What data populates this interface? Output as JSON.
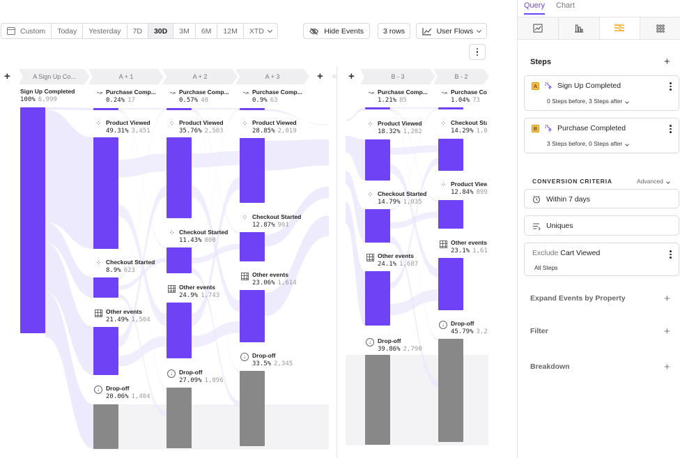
{
  "toolbar": {
    "date_range": [
      "Custom",
      "Today",
      "Yesterday",
      "7D",
      "30D",
      "3M",
      "6M",
      "12M",
      "XTD"
    ],
    "active_range": "30D",
    "hide_events_label": "Hide Events",
    "rows_label": "3 rows",
    "chart_type_label": "User Flows"
  },
  "flow": {
    "headers": {
      "anchor_a": "A  Sign Up Co...",
      "a1": "A + 1",
      "a2": "A + 2",
      "a3": "A + 3",
      "b3": "B - 3",
      "b2": "B - 2"
    },
    "anchor": {
      "title": "Sign Up Completed",
      "pct": "100%",
      "count": "6,999"
    },
    "columns": [
      {
        "key": "a1",
        "nodes": [
          {
            "title": "Purchase Comp...",
            "pct": "0.24%",
            "count": "17"
          },
          {
            "title": "Product Viewed",
            "pct": "49.31%",
            "count": "3,451"
          },
          {
            "title": "Checkout Started",
            "pct": "8.9%",
            "count": "623"
          },
          {
            "title": "Other events",
            "pct": "21.49%",
            "count": "1,504"
          },
          {
            "title": "Drop-off",
            "pct": "20.06%",
            "count": "1,404"
          }
        ]
      },
      {
        "key": "a2",
        "nodes": [
          {
            "title": "Purchase Comp...",
            "pct": "0.57%",
            "count": "40"
          },
          {
            "title": "Product Viewed",
            "pct": "35.76%",
            "count": "2,503"
          },
          {
            "title": "Checkout Started",
            "pct": "11.43%",
            "count": "800"
          },
          {
            "title": "Other events",
            "pct": "24.9%",
            "count": "1,743"
          },
          {
            "title": "Drop-off",
            "pct": "27.09%",
            "count": "1,896"
          }
        ]
      },
      {
        "key": "a3",
        "nodes": [
          {
            "title": "Purchase Comp...",
            "pct": "0.9%",
            "count": "63"
          },
          {
            "title": "Product Viewed",
            "pct": "28.85%",
            "count": "2,019"
          },
          {
            "title": "Checkout Started",
            "pct": "12.87%",
            "count": "901"
          },
          {
            "title": "Other events",
            "pct": "23.06%",
            "count": "1,614"
          },
          {
            "title": "Drop-off",
            "pct": "33.5%",
            "count": "2,345"
          }
        ]
      },
      {
        "key": "b3",
        "nodes": [
          {
            "title": "Purchase Comp...",
            "pct": "1.21%",
            "count": "85"
          },
          {
            "title": "Product Viewed",
            "pct": "18.32%",
            "count": "1,282"
          },
          {
            "title": "Checkout Started",
            "pct": "14.79%",
            "count": "1,035"
          },
          {
            "title": "Other events",
            "pct": "24.1%",
            "count": "1,687"
          },
          {
            "title": "Drop-off",
            "pct": "39.86%",
            "count": "2,790"
          }
        ]
      },
      {
        "key": "b2",
        "nodes": [
          {
            "title": "Purchase Com",
            "pct": "1.04%",
            "count": "73"
          },
          {
            "title": "Checkout Sta",
            "pct": "14.29%",
            "count": "1,0"
          },
          {
            "title": "Product View",
            "pct": "12.84%",
            "count": "899"
          },
          {
            "title": "Other events",
            "pct": "23.1%",
            "count": "1,61"
          },
          {
            "title": "Drop-off",
            "pct": "45.79%",
            "count": "3,2"
          }
        ]
      }
    ]
  },
  "panel": {
    "tabs": [
      "Query",
      "Chart"
    ],
    "active_tab": "Query",
    "steps_heading": "Steps",
    "steps": [
      {
        "badge": "A",
        "name": "Sign Up Completed",
        "detail": "0 Steps before, 3 Steps after"
      },
      {
        "badge": "B",
        "name": "Purchase Completed",
        "detail": "3 Steps before, 0 Steps after"
      }
    ],
    "conversion_heading": "CONVERSION CRITERIA",
    "advanced_label": "Advanced",
    "window_label": "Within 7 days",
    "uniques_label": "Uniques",
    "exclude_prefix": "Exclude",
    "exclude_event": "Cart Viewed",
    "exclude_scope": "All Steps",
    "expand_label": "Expand Events by Property",
    "filter_label": "Filter",
    "breakdown_label": "Breakdown"
  },
  "colors": {
    "accent": "#6f42f5",
    "dropoff": "#888888",
    "flow": "#e9e6fb"
  }
}
